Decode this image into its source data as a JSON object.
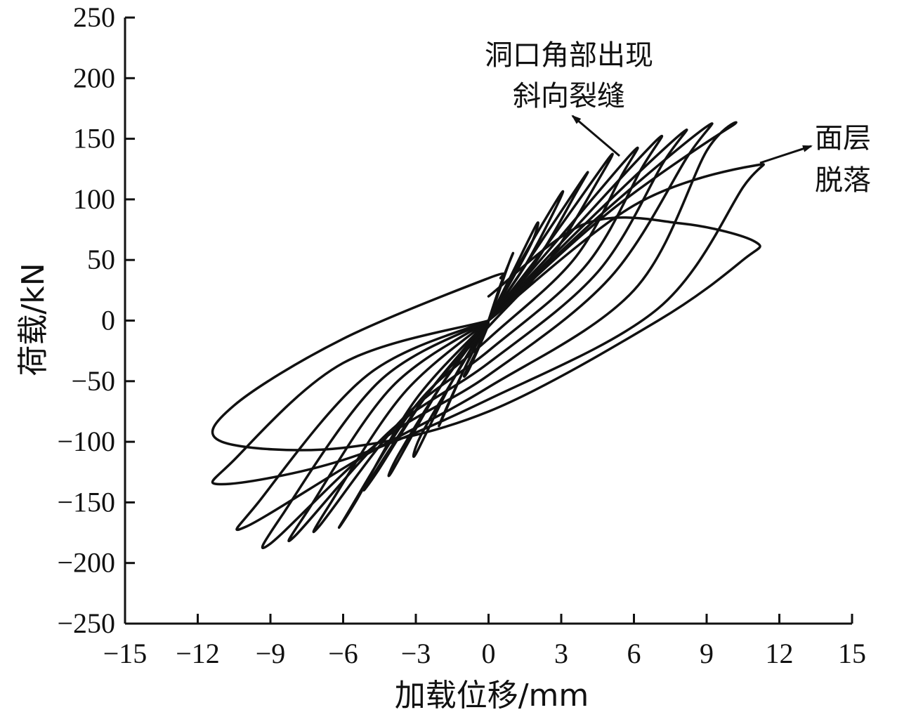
{
  "chart_data": {
    "type": "line",
    "title": "",
    "xlabel": "加载位移/mm",
    "ylabel": "荷载/kN",
    "xlim": [
      -15,
      15
    ],
    "ylim": [
      -250,
      250
    ],
    "xticks": [
      -15,
      -12,
      -9,
      -6,
      -3,
      0,
      3,
      6,
      9,
      12,
      15
    ],
    "yticks": [
      250,
      200,
      150,
      100,
      50,
      0,
      -50,
      -100,
      -150,
      -200,
      -250
    ],
    "xtick_labels": [
      "−15",
      "−12",
      "−9",
      "−6",
      "−3",
      "0",
      "3",
      "6",
      "9",
      "12",
      "15"
    ],
    "ytick_labels": [
      "250",
      "200",
      "150",
      "100",
      "50",
      "0",
      "−50",
      "−100",
      "−150",
      "−200",
      "−250"
    ],
    "grid": false,
    "line_color": "#111111",
    "annotations": [
      {
        "lines": [
          "洞口角部出现",
          "斜向裂缝"
        ],
        "arrow_to": [
          5.3,
          135
        ]
      },
      {
        "lines": [
          "面层",
          "脱落"
        ],
        "arrow_from": [
          11.2,
          130
        ]
      }
    ],
    "series": [
      {
        "x": [
          0,
          0.5,
          1.0,
          0.8,
          0.1,
          -0.5,
          -1.0,
          -0.8,
          -0.1,
          0
        ],
        "y": [
          0,
          30,
          55,
          45,
          5,
          -25,
          -45,
          -40,
          -8,
          0
        ]
      },
      {
        "x": [
          0,
          1.0,
          2.0,
          1.8,
          1.0,
          0,
          -1.0,
          -2.0,
          -1.8,
          -1.0,
          0
        ],
        "y": [
          0,
          40,
          80,
          65,
          35,
          0,
          -40,
          -85,
          -75,
          -40,
          0
        ]
      },
      {
        "x": [
          0,
          1.5,
          3.0,
          2.7,
          1.5,
          0,
          -1.5,
          -3.0,
          -2.8,
          -1.5,
          0
        ],
        "y": [
          0,
          55,
          105,
          90,
          45,
          0,
          -50,
          -110,
          -95,
          -50,
          0
        ]
      },
      {
        "x": [
          0,
          2.0,
          4.0,
          3.6,
          2.0,
          0,
          -2.0,
          -4.0,
          -3.7,
          -2.0,
          0
        ],
        "y": [
          0,
          60,
          120,
          105,
          50,
          0,
          -55,
          -125,
          -110,
          -55,
          0
        ]
      },
      {
        "x": [
          0,
          2.5,
          5.0,
          4.5,
          2.5,
          0,
          -2.5,
          -5.0,
          -4.6,
          -2.5,
          0
        ],
        "y": [
          0,
          65,
          135,
          115,
          50,
          -5,
          -60,
          -135,
          -125,
          -60,
          0
        ]
      },
      {
        "x": [
          0,
          3.0,
          6.0,
          5.5,
          3.5,
          0,
          -3.0,
          -6.0,
          -5.5,
          -3.0,
          0
        ],
        "y": [
          0,
          70,
          140,
          120,
          50,
          -15,
          -70,
          -165,
          -150,
          -65,
          0
        ]
      },
      {
        "x": [
          0,
          3.5,
          7.0,
          6.3,
          4.0,
          0,
          -3.5,
          -7.0,
          -6.5,
          -3.5,
          0
        ],
        "y": [
          0,
          75,
          150,
          125,
          45,
          -25,
          -80,
          -170,
          -150,
          -60,
          0
        ]
      },
      {
        "x": [
          0,
          4.0,
          8.0,
          7.2,
          4.5,
          0,
          -4.0,
          -8.0,
          -7.4,
          -4.0,
          0
        ],
        "y": [
          0,
          80,
          155,
          130,
          40,
          -35,
          -90,
          -178,
          -155,
          -55,
          0
        ]
      },
      {
        "x": [
          0,
          4.5,
          9.0,
          8.2,
          5.0,
          0,
          -4.5,
          -9.0,
          -8.5,
          -4.5,
          0
        ],
        "y": [
          0,
          85,
          160,
          135,
          35,
          -45,
          -100,
          -184,
          -160,
          -50,
          0
        ]
      },
      {
        "x": [
          0,
          5.0,
          10.0,
          9.0,
          6.0,
          0,
          -5.0,
          -10.0,
          -9.5,
          -5.0,
          0
        ],
        "y": [
          0,
          90,
          160,
          140,
          25,
          -55,
          -110,
          -170,
          -150,
          -45,
          0
        ]
      },
      {
        "x": [
          0,
          6.0,
          11.0,
          10.5,
          7.0,
          0,
          -6.0,
          -11.0,
          -10.5,
          -6.0,
          0
        ],
        "y": [
          0,
          95,
          128,
          110,
          10,
          -65,
          -115,
          -135,
          -115,
          -35,
          0
        ]
      },
      {
        "x": [
          0,
          4.0,
          8.0,
          11.0,
          10.5,
          7.0,
          0,
          -6.0,
          -11.0,
          -10.5,
          -6.0,
          0,
          0.5
        ],
        "y": [
          20,
          80,
          80,
          65,
          50,
          0,
          -75,
          -105,
          -100,
          -70,
          -15,
          35,
          35
        ]
      }
    ]
  }
}
